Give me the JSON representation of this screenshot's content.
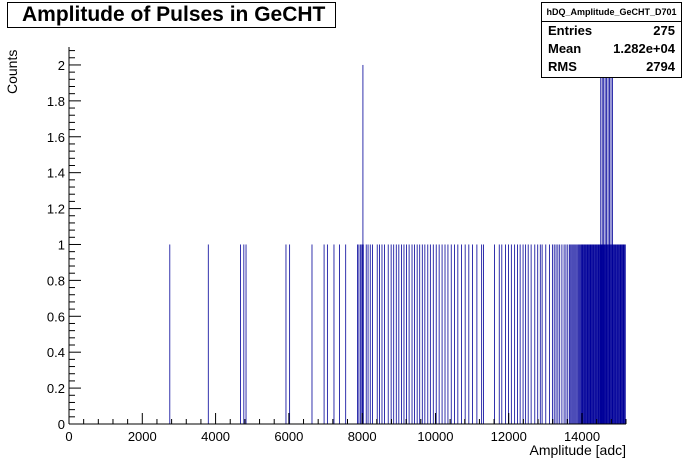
{
  "title": "Amplitude of Pulses in GeCHT",
  "stats": {
    "name": "hDQ_Amplitude_GeCHT_D701",
    "rows": [
      {
        "label": "Entries",
        "value": "275"
      },
      {
        "label": "Mean",
        "value": "1.282e+04"
      },
      {
        "label": "RMS",
        "value": "2794"
      }
    ]
  },
  "colors": {
    "bars": "#000099",
    "axis": "#000000"
  },
  "chart_data": {
    "type": "bar",
    "title": "Amplitude of Pulses in GeCHT",
    "xlabel": "Amplitude [adc]",
    "ylabel": "Counts",
    "xlim": [
      0,
      15200
    ],
    "ylim": [
      0,
      2.1
    ],
    "xticks": [
      "0",
      "2000",
      "4000",
      "6000",
      "8000",
      "10000",
      "12000",
      "14000"
    ],
    "yticks": [
      "0",
      "0.2",
      "0.4",
      "0.6",
      "0.8",
      "1",
      "1.2",
      "1.4",
      "1.6",
      "1.8",
      "2"
    ],
    "bin_width": 20,
    "bins_count_1": [
      2740,
      3790,
      4670,
      4760,
      4820,
      5910,
      6010,
      6620,
      6950,
      7040,
      7220,
      7370,
      7540,
      7860,
      7900,
      7940,
      7980,
      8000,
      8020,
      8100,
      8150,
      8210,
      8270,
      8400,
      8460,
      8530,
      8600,
      8700,
      8780,
      8850,
      8920,
      8990,
      9060,
      9130,
      9200,
      9270,
      9350,
      9420,
      9490,
      9560,
      9630,
      9700,
      9780,
      9850,
      9930,
      10010,
      10090,
      10170,
      10250,
      10330,
      10420,
      10510,
      10600,
      10700,
      10800,
      10900,
      11000,
      11120,
      11250,
      11300,
      11600,
      11730,
      11800,
      11900,
      11980,
      12060,
      12150,
      12230,
      12300,
      12380,
      12450,
      12520,
      12600,
      12700,
      12780,
      12850,
      12900,
      13000,
      13100,
      13180,
      13230,
      13280,
      13330,
      13380,
      13440,
      13500,
      13550,
      13600,
      13650,
      13680,
      13710,
      13740,
      13770,
      13800,
      13830,
      13860,
      13890,
      13920,
      13950,
      13970,
      13990,
      14010,
      14030,
      14050,
      14070,
      14090,
      14110,
      14130,
      14150,
      14170,
      14190,
      14210,
      14230,
      14250,
      14270,
      14290,
      14310,
      14330,
      14350,
      14370,
      14390,
      14410,
      14430,
      14450,
      14470,
      14490,
      14510,
      14530,
      14550,
      14570,
      14590,
      14610,
      14630,
      14650,
      14670,
      14690,
      14710,
      14730,
      14750,
      14770,
      14790,
      14810,
      14830,
      14850,
      14870,
      14890,
      14910,
      14930,
      14950,
      14970,
      14990,
      15010,
      15030,
      15050,
      15070,
      15090,
      15110,
      15130,
      15150,
      15170
    ],
    "bins_count_2": [
      8010,
      14500,
      14540,
      14580,
      14620,
      14660,
      14700,
      14740,
      14780,
      14820
    ],
    "grid": false
  }
}
